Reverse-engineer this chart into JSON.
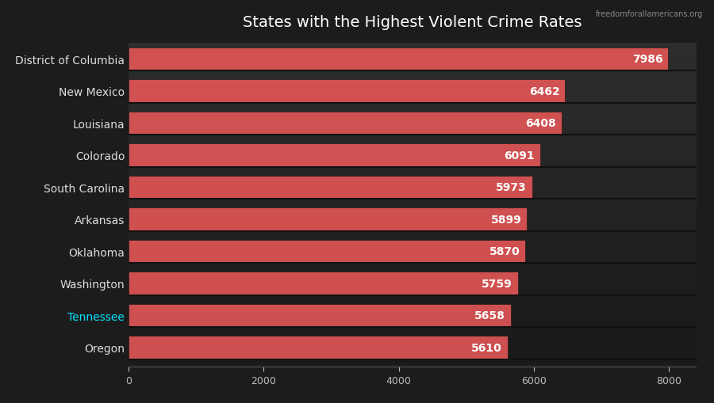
{
  "title": "States with the Highest Violent Crime Rates",
  "watermark": "freedomforallamericans.org",
  "categories": [
    "District of Columbia",
    "New Mexico",
    "Louisiana",
    "Colorado",
    "South Carolina",
    "Arkansas",
    "Oklahoma",
    "Washington",
    "Tennessee",
    "Oregon"
  ],
  "values": [
    7986,
    6462,
    6408,
    6091,
    5973,
    5899,
    5870,
    5759,
    5658,
    5610
  ],
  "bar_color": "#e05555",
  "bar_edge_color": "#1a1a1a",
  "value_label_color": "#ffffff",
  "title_color": "#ffffff",
  "label_color": "#dddddd",
  "tennessee_color": "#00e5ff",
  "tick_label_color": "#bbbbbb",
  "background_color": "#1c1c1c",
  "plot_bg_color": "#2a2a2a",
  "xlim": [
    0,
    8400
  ],
  "xticks": [
    0,
    2000,
    4000,
    6000,
    8000
  ],
  "bar_height": 0.72,
  "title_fontsize": 14,
  "label_fontsize": 10,
  "value_fontsize": 10,
  "tick_fontsize": 9,
  "separator_color": "#111111",
  "separator_linewidth": 1.5
}
